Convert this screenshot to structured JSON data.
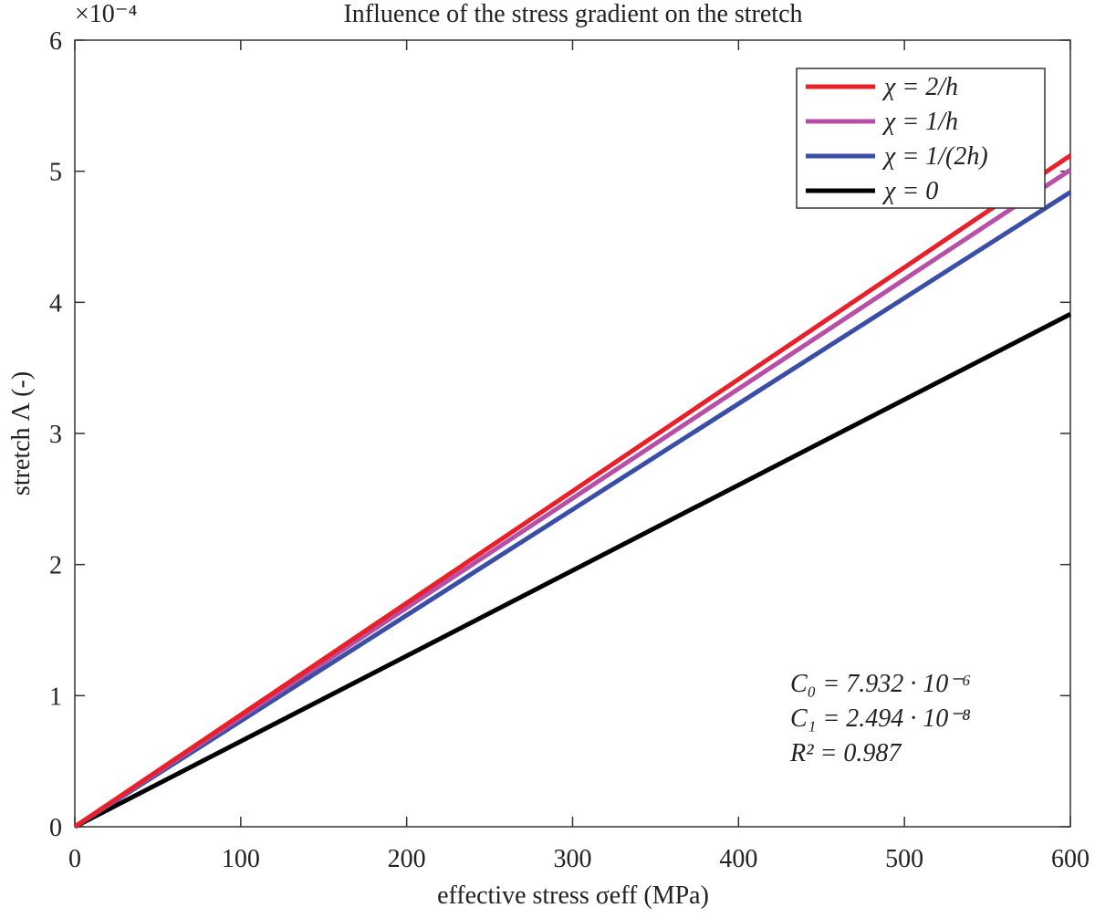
{
  "chart_data": {
    "type": "line",
    "title": "Influence of the stress gradient on the stretch",
    "x_label": "effective stress σeff (MPa)",
    "y_label": "stretch Λ (-)",
    "y_multiplier": "×10⁻⁴",
    "x": [
      0,
      600
    ],
    "series": [
      {
        "name": "χ = 2/h",
        "color": "#e8202a",
        "values": [
          0,
          5.12
        ]
      },
      {
        "name": "χ = 1/h",
        "color": "#b84fa6",
        "values": [
          0,
          5.01
        ]
      },
      {
        "name": "χ = 1/(2h)",
        "color": "#3a4ea6",
        "values": [
          0,
          4.84
        ]
      },
      {
        "name": "χ = 0",
        "color": "#000000",
        "values": [
          0,
          3.91
        ]
      }
    ],
    "xlim": [
      0,
      600
    ],
    "xticks": [
      0,
      100,
      200,
      300,
      400,
      500,
      600
    ],
    "ylim": [
      0,
      6
    ],
    "yticks": [
      0,
      1,
      2,
      3,
      4,
      5,
      6
    ],
    "legend": "upper right",
    "annotations": [
      "C₀ = 7.932 · 10⁻⁶",
      "C₁ = 2.494 · 10⁻⁸",
      "R² = 0.987"
    ]
  }
}
